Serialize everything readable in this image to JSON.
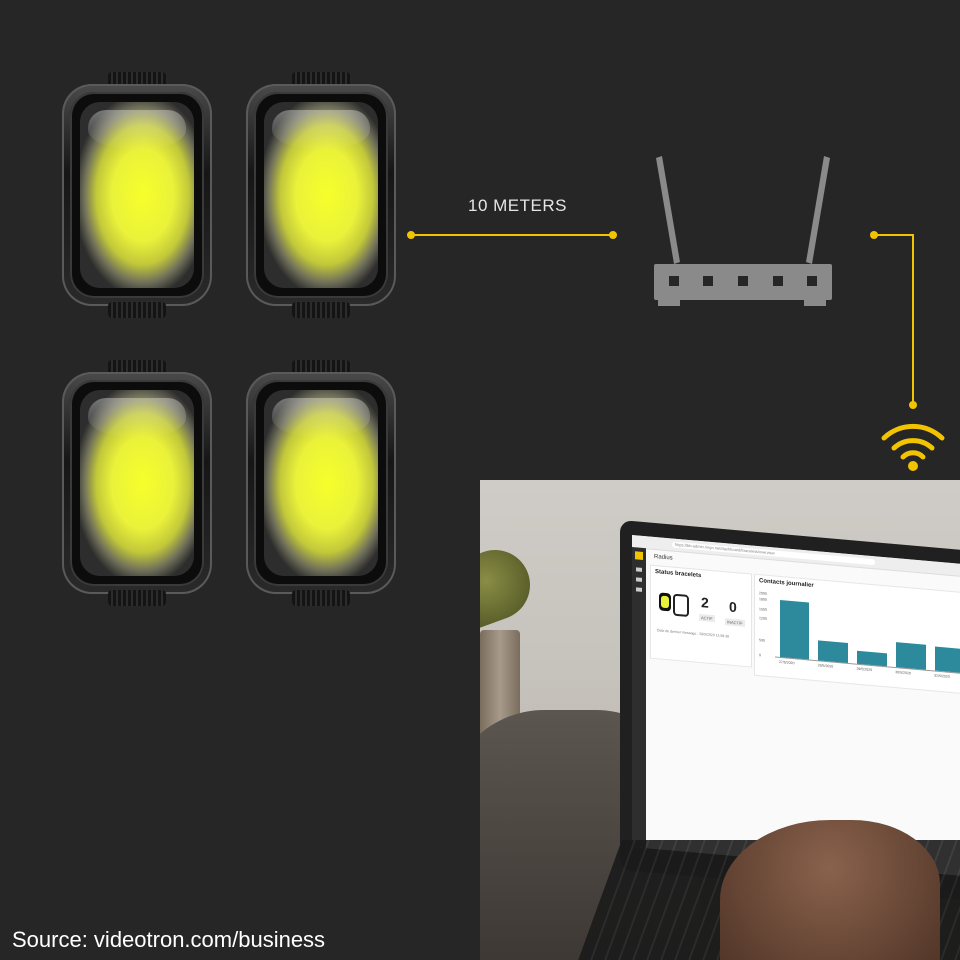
{
  "diagram": {
    "distance_label": "10 METERS",
    "accent_color": "#f2c300",
    "devices": [
      "bracelet-1",
      "bracelet-2",
      "bracelet-3",
      "bracelet-4"
    ],
    "router_icon": "router-icon",
    "wifi_icon": "wifi-icon"
  },
  "laptop_screen": {
    "url": "https://bb-admin.ringo.net/dashboard/bracelets/overview",
    "app_title": "Radius",
    "status_card": {
      "title": "Status bracelets",
      "active_count": "2",
      "active_label": "ACTIF",
      "inactive_count": "0",
      "inactive_label": "INACTIF",
      "last_message": "Date du dernier message : 29/5/2020 11:56:36"
    },
    "contacts_card": {
      "title": "Contacts journalier"
    }
  },
  "chart_data": {
    "type": "bar",
    "title": "Contacts journalier",
    "categories": [
      "27/5/2020",
      "28/5/2020",
      "29/5/2020",
      "30/5/2020",
      "31/5/2020"
    ],
    "values": [
      1850,
      650,
      420,
      800,
      760
    ],
    "yticks": [
      "2000",
      "1800",
      "1500",
      "1200",
      "500",
      "0"
    ],
    "ylim": [
      0,
      2000
    ],
    "color": "#2d8a9c"
  },
  "source": "Source: videotron.com/business"
}
